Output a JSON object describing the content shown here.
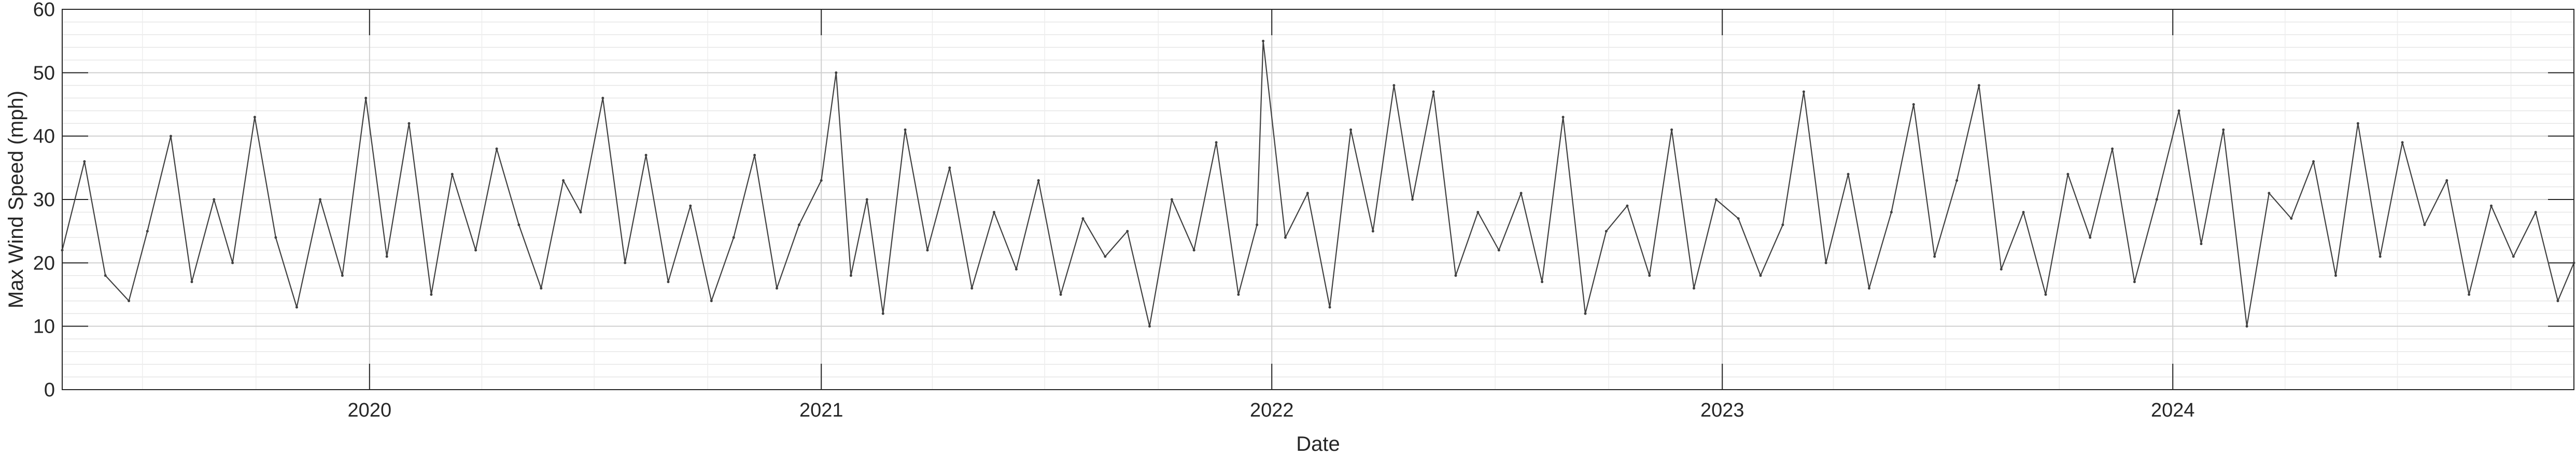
{
  "chart_data": {
    "type": "line",
    "title": "",
    "xlabel": "Date",
    "ylabel": "Max Wind Speed (mph)",
    "x_range": [
      "2019-04-27",
      "2024-11-21"
    ],
    "ylim": [
      0,
      60
    ],
    "y_ticks": [
      0,
      10,
      20,
      30,
      40,
      50,
      60
    ],
    "x_ticks": [
      {
        "date": "2020-01-01",
        "label": "2020"
      },
      {
        "date": "2021-01-01",
        "label": "2021"
      },
      {
        "date": "2022-01-01",
        "label": "2022"
      },
      {
        "date": "2023-01-01",
        "label": "2023"
      },
      {
        "date": "2024-01-01",
        "label": "2024"
      }
    ],
    "grid": {
      "major": true,
      "minor": true
    },
    "line_color": "#404040",
    "series": [
      {
        "x": [
          "2019-04-27",
          "2019-05-15",
          "2019-06-01",
          "2019-06-20",
          "2019-07-05",
          "2019-07-24",
          "2019-08-10",
          "2019-08-28",
          "2019-09-12",
          "2019-09-30",
          "2019-10-17",
          "2019-11-03",
          "2019-11-22",
          "2019-12-10",
          "2019-12-29",
          "2020-01-15",
          "2020-02-02",
          "2020-02-20",
          "2020-03-08",
          "2020-03-27",
          "2020-04-13",
          "2020-05-01",
          "2020-05-19",
          "2020-06-06",
          "2020-06-20",
          "2020-07-08",
          "2020-07-26",
          "2020-08-12",
          "2020-08-30",
          "2020-09-17",
          "2020-10-04",
          "2020-10-22",
          "2020-11-08",
          "2020-11-26",
          "2020-12-14",
          "2021-01-01",
          "2021-01-13",
          "2021-01-25",
          "2021-02-07",
          "2021-02-20",
          "2021-03-10",
          "2021-03-28",
          "2021-04-15",
          "2021-05-03",
          "2021-05-21",
          "2021-06-08",
          "2021-06-26",
          "2021-07-14",
          "2021-08-01",
          "2021-08-19",
          "2021-09-06",
          "2021-09-24",
          "2021-10-12",
          "2021-10-30",
          "2021-11-17",
          "2021-12-05",
          "2021-12-20",
          "2021-12-25",
          "2022-01-12",
          "2022-01-30",
          "2022-02-17",
          "2022-03-06",
          "2022-03-24",
          "2022-04-10",
          "2022-04-25",
          "2022-05-12",
          "2022-05-30",
          "2022-06-17",
          "2022-07-04",
          "2022-07-22",
          "2022-08-08",
          "2022-08-25",
          "2022-09-12",
          "2022-09-29",
          "2022-10-16",
          "2022-11-03",
          "2022-11-21",
          "2022-12-09",
          "2022-12-27",
          "2023-01-14",
          "2023-02-01",
          "2023-02-19",
          "2023-03-08",
          "2023-03-26",
          "2023-04-13",
          "2023-04-30",
          "2023-05-18",
          "2023-06-05",
          "2023-06-22",
          "2023-07-10",
          "2023-07-28",
          "2023-08-15",
          "2023-09-02",
          "2023-09-20",
          "2023-10-08",
          "2023-10-26",
          "2023-11-13",
          "2023-12-01",
          "2023-12-19",
          "2024-01-06",
          "2024-01-24",
          "2024-02-11",
          "2024-03-01",
          "2024-03-19",
          "2024-04-06",
          "2024-04-24",
          "2024-05-12",
          "2024-05-30",
          "2024-06-17",
          "2024-07-05",
          "2024-07-23",
          "2024-08-10",
          "2024-08-28",
          "2024-09-15",
          "2024-10-03",
          "2024-10-21",
          "2024-11-08",
          "2024-11-21"
        ],
        "y": [
          22,
          36,
          18,
          14,
          25,
          40,
          17,
          30,
          20,
          43,
          24,
          13,
          30,
          18,
          46,
          21,
          42,
          15,
          34,
          22,
          38,
          26,
          16,
          33,
          28,
          46,
          20,
          37,
          17,
          29,
          14,
          24,
          37,
          16,
          26,
          33,
          50,
          18,
          30,
          12,
          41,
          22,
          35,
          16,
          28,
          19,
          33,
          15,
          27,
          21,
          25,
          10,
          30,
          22,
          39,
          15,
          26,
          55,
          24,
          31,
          13,
          41,
          25,
          48,
          30,
          47,
          18,
          28,
          22,
          31,
          17,
          43,
          12,
          25,
          29,
          18,
          41,
          16,
          30,
          27,
          18,
          26,
          47,
          20,
          34,
          16,
          28,
          45,
          21,
          33,
          48,
          19,
          28,
          15,
          34,
          24,
          38,
          17,
          30,
          44,
          23,
          41,
          10,
          31,
          27,
          36,
          18,
          42,
          21,
          39,
          26,
          33,
          15,
          29,
          21,
          28,
          14,
          20
        ]
      }
    ]
  }
}
